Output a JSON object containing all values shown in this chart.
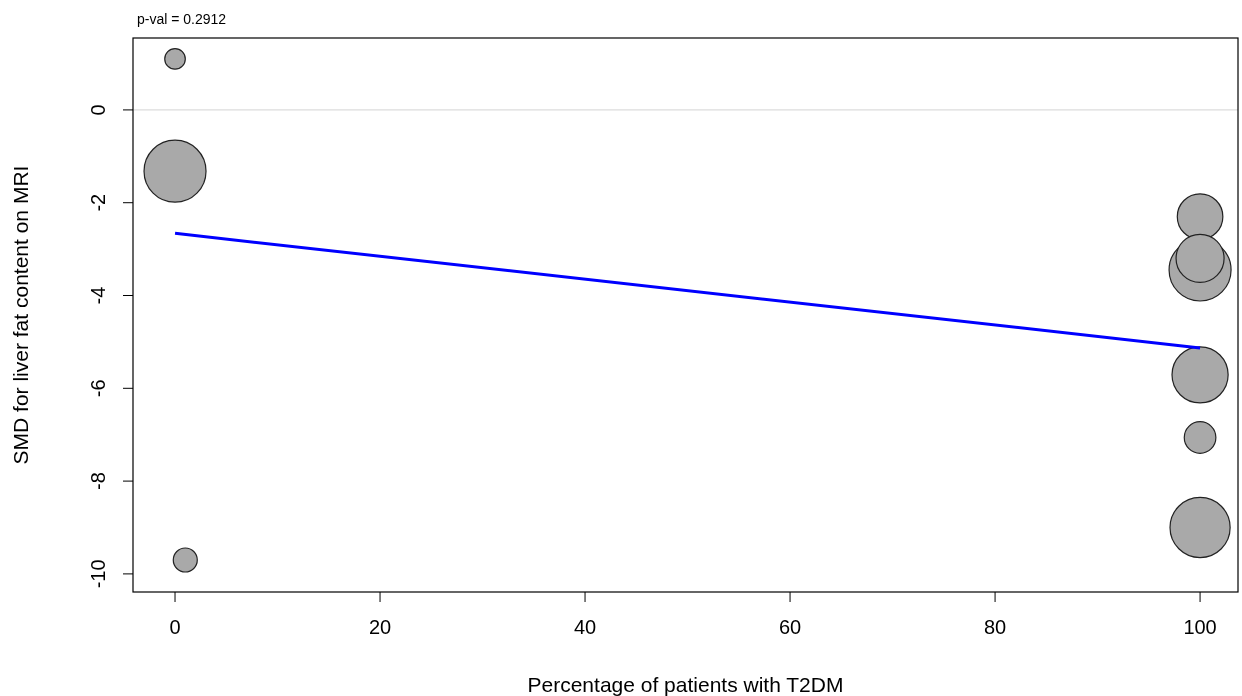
{
  "chart_data": {
    "type": "bubble",
    "xlabel": "Percentage of patients with T2DM",
    "ylabel": "SMD for liver fat content on MRI",
    "annotations": [
      "p-val = 0.2912"
    ],
    "xlim": [
      -4.1,
      103.7
    ],
    "ylim": [
      -10.39,
      1.55
    ],
    "xticks": [
      0,
      20,
      40,
      60,
      80,
      100
    ],
    "yticks": [
      0,
      -2,
      -4,
      -6,
      -8,
      -10
    ],
    "grid": false,
    "ref_lines": [
      {
        "axis": "y",
        "value": 0,
        "color": "#d3d3d3"
      }
    ],
    "series": [
      {
        "color": "#a9a9a9",
        "x": [
          0,
          0,
          1,
          100,
          100,
          100,
          100,
          100,
          100
        ],
        "values": [
          1.1,
          -1.32,
          -9.7,
          -2.3,
          -3.45,
          -3.2,
          -5.71,
          -7.06,
          -9.0
        ],
        "sizes": [
          0.11,
          1,
          0.15,
          0.54,
          1,
          0.6,
          0.82,
          0.26,
          0.94
        ]
      },
      {
        "type": "line",
        "color": "#0000ff",
        "x": [
          0,
          100
        ],
        "values": [
          -2.66,
          -5.13
        ]
      }
    ]
  }
}
